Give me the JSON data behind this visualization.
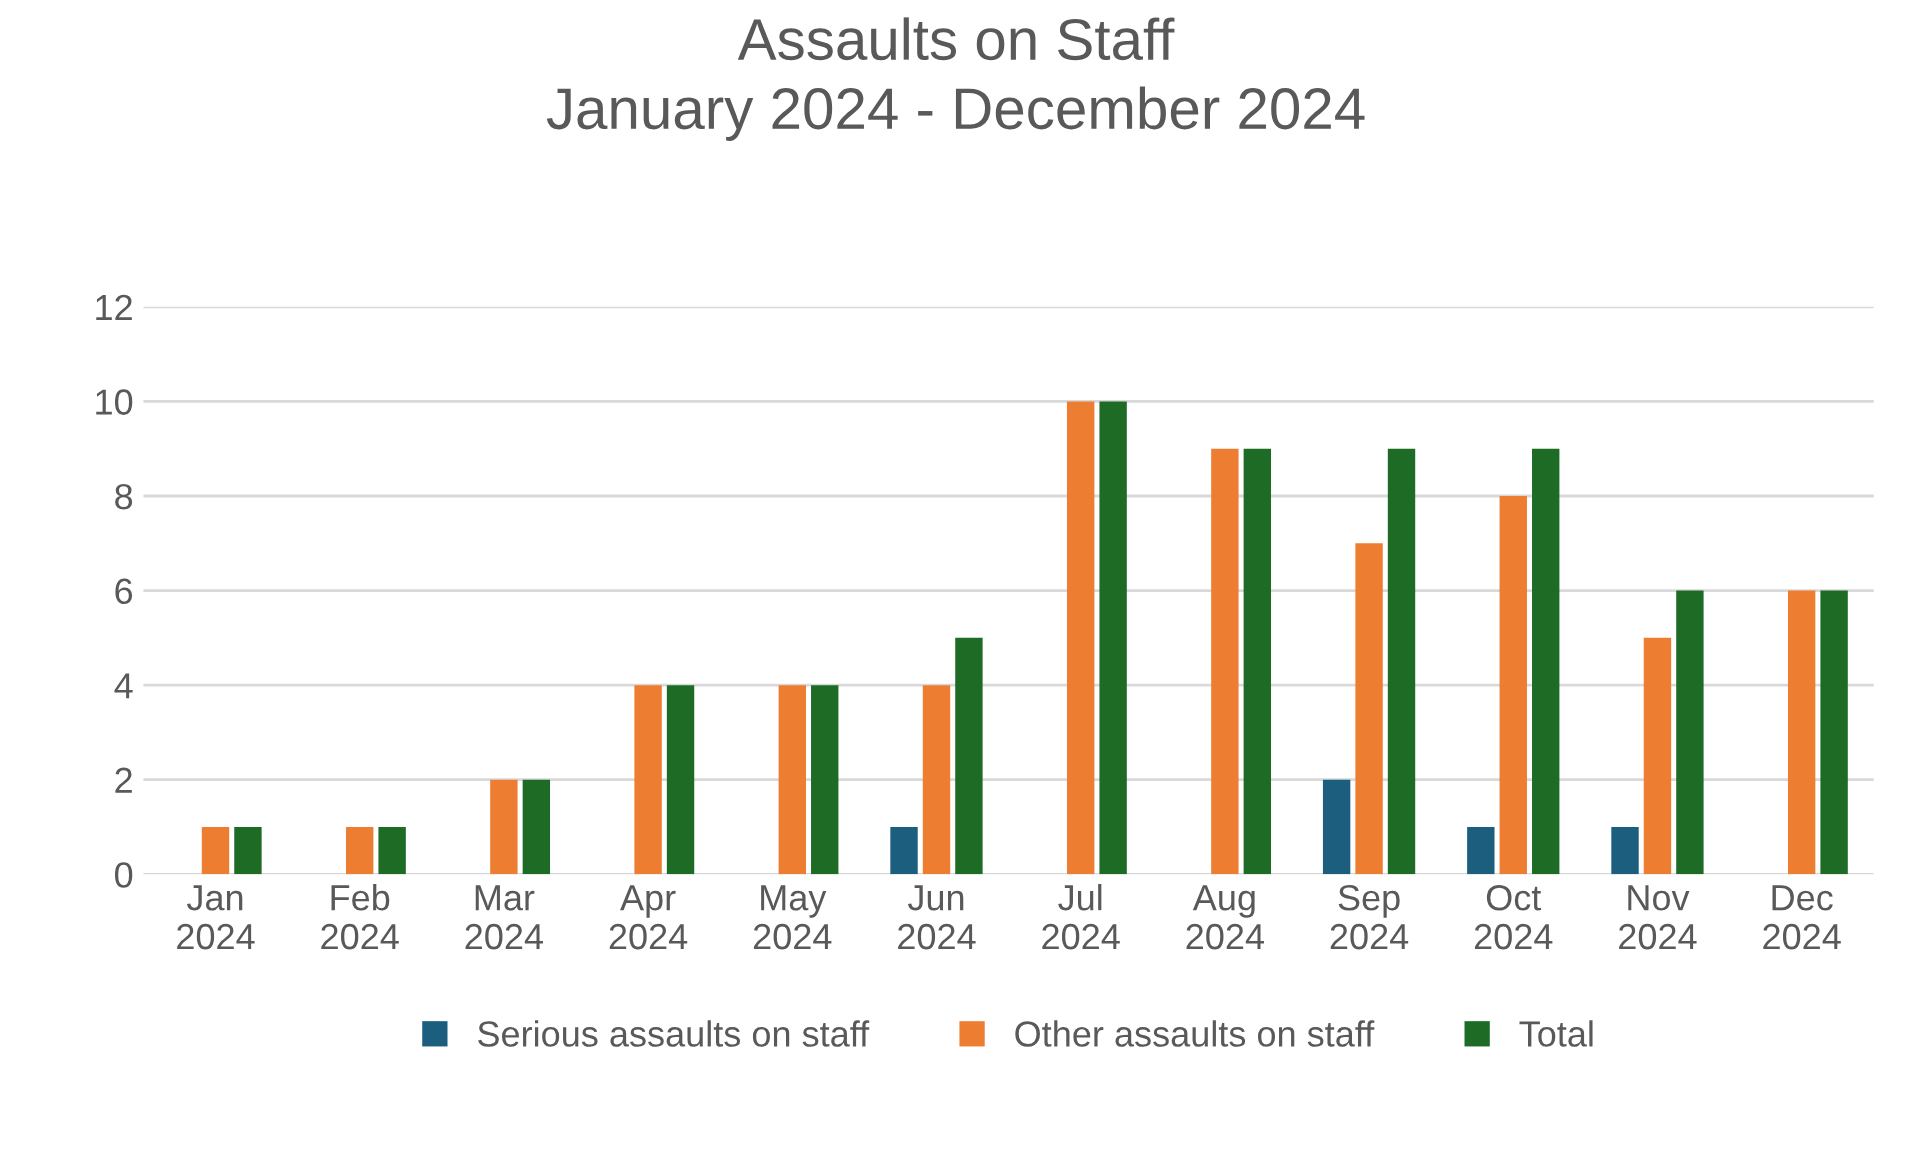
{
  "chart_data": {
    "type": "bar",
    "title": "Assaults on Staff\nJanuary 2024 - December 2024",
    "categories": [
      "Jan\n2024",
      "Feb\n2024",
      "Mar\n2024",
      "Apr\n2024",
      "May\n2024",
      "Jun\n2024",
      "Jul\n2024",
      "Aug\n2024",
      "Sep\n2024",
      "Oct\n2024",
      "Nov\n2024",
      "Dec\n2024"
    ],
    "series": [
      {
        "name": "Serious assaults on staff",
        "color": "#1b5e7e",
        "values": [
          0,
          0,
          0,
          0,
          0,
          1,
          0,
          0,
          2,
          1,
          1,
          0
        ]
      },
      {
        "name": "Other assaults on staff",
        "color": "#ed7d31",
        "values": [
          1,
          1,
          2,
          4,
          4,
          4,
          10,
          9,
          7,
          8,
          5,
          6
        ]
      },
      {
        "name": "Total",
        "color": "#1e6b26",
        "values": [
          1,
          1,
          2,
          4,
          4,
          5,
          10,
          9,
          9,
          9,
          6,
          6
        ]
      }
    ],
    "ylim": [
      0,
      12
    ],
    "yticks": [
      0,
      2,
      4,
      6,
      8,
      10,
      12
    ],
    "grid": "y",
    "legend": "bottom"
  }
}
